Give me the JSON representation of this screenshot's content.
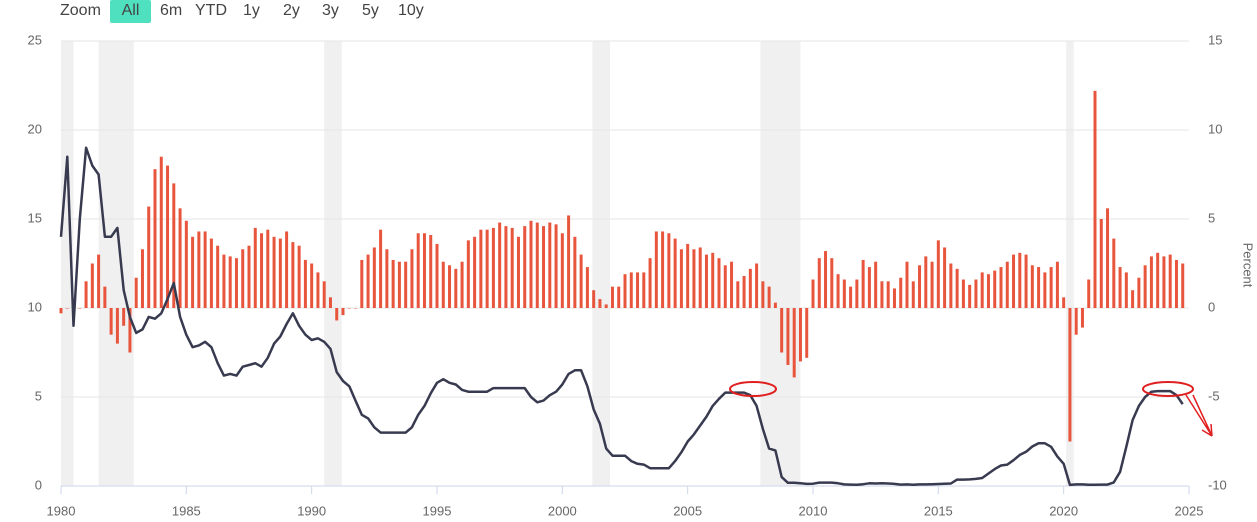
{
  "range_selector": {
    "label": "Zoom",
    "buttons": [
      "All",
      "6m",
      "YTD",
      "1y",
      "2y",
      "3y",
      "5y",
      "10y"
    ],
    "selected": 0
  },
  "chart_data": {
    "type": "combo",
    "y2label": "Percent",
    "xlim": [
      1980,
      2025
    ],
    "xticks": [
      1980,
      1985,
      1990,
      1995,
      2000,
      2005,
      2010,
      2015,
      2020,
      2025
    ],
    "ylim": [
      0,
      25
    ],
    "yticks": [
      0,
      5,
      10,
      15,
      20,
      25
    ],
    "y2lim": [
      -10,
      15
    ],
    "y2ticks": [
      -10,
      -5,
      0,
      5,
      10,
      15
    ],
    "grid": true,
    "recessions": [
      [
        1980.0,
        1980.5
      ],
      [
        1981.5,
        1982.9
      ],
      [
        1990.5,
        1991.2
      ],
      [
        2001.2,
        2001.9
      ],
      [
        2007.9,
        2009.5
      ],
      [
        2020.1,
        2020.4
      ]
    ],
    "x": [
      1980,
      1980.25,
      1980.5,
      1980.75,
      1981,
      1981.25,
      1981.5,
      1981.75,
      1982,
      1982.25,
      1982.5,
      1982.75,
      1983,
      1983.25,
      1983.5,
      1983.75,
      1984,
      1984.25,
      1984.5,
      1984.75,
      1985,
      1985.25,
      1985.5,
      1985.75,
      1986,
      1986.25,
      1986.5,
      1986.75,
      1987,
      1987.25,
      1987.5,
      1987.75,
      1988,
      1988.25,
      1988.5,
      1988.75,
      1989,
      1989.25,
      1989.5,
      1989.75,
      1990,
      1990.25,
      1990.5,
      1990.75,
      1991,
      1991.25,
      1991.5,
      1991.75,
      1992,
      1992.25,
      1992.5,
      1992.75,
      1993,
      1993.25,
      1993.5,
      1993.75,
      1994,
      1994.25,
      1994.5,
      1994.75,
      1995,
      1995.25,
      1995.5,
      1995.75,
      1996,
      1996.25,
      1996.5,
      1996.75,
      1997,
      1997.25,
      1997.5,
      1997.75,
      1998,
      1998.25,
      1998.5,
      1998.75,
      1999,
      1999.25,
      1999.5,
      1999.75,
      2000,
      2000.25,
      2000.5,
      2000.75,
      2001,
      2001.25,
      2001.5,
      2001.75,
      2002,
      2002.25,
      2002.5,
      2002.75,
      2003,
      2003.25,
      2003.5,
      2003.75,
      2004,
      2004.25,
      2004.5,
      2004.75,
      2005,
      2005.25,
      2005.5,
      2005.75,
      2006,
      2006.25,
      2006.5,
      2006.75,
      2007,
      2007.25,
      2007.5,
      2007.75,
      2008,
      2008.25,
      2008.5,
      2008.75,
      2009,
      2009.25,
      2009.5,
      2009.75,
      2010,
      2010.25,
      2010.5,
      2010.75,
      2011,
      2011.25,
      2011.5,
      2011.75,
      2012,
      2012.25,
      2012.5,
      2012.75,
      2013,
      2013.25,
      2013.5,
      2013.75,
      2014,
      2014.25,
      2014.5,
      2014.75,
      2015,
      2015.25,
      2015.5,
      2015.75,
      2016,
      2016.25,
      2016.5,
      2016.75,
      2017,
      2017.25,
      2017.5,
      2017.75,
      2018,
      2018.25,
      2018.5,
      2018.75,
      2019,
      2019.25,
      2019.5,
      2019.75,
      2020,
      2020.25,
      2020.5,
      2020.75,
      2021,
      2021.25,
      2021.5,
      2021.75,
      2022,
      2022.25,
      2022.5,
      2022.75,
      2023,
      2023.25,
      2023.5,
      2023.75,
      2024,
      2024.25,
      2024.5,
      2024.75
    ],
    "series": [
      {
        "type": "line",
        "color": "#383b50",
        "values": [
          14,
          18.5,
          9,
          15,
          19,
          18,
          17.5,
          14,
          14,
          14.5,
          11,
          9.5,
          8.6,
          8.8,
          9.5,
          9.4,
          9.7,
          10.5,
          11.4,
          9.5,
          8.5,
          7.8,
          7.9,
          8.1,
          7.8,
          6.9,
          6.2,
          6.3,
          6.2,
          6.7,
          6.8,
          6.9,
          6.7,
          7.2,
          8,
          8.4,
          9.1,
          9.7,
          9,
          8.5,
          8.2,
          8.3,
          8.1,
          7.7,
          6.4,
          5.9,
          5.6,
          4.8,
          4,
          3.8,
          3.3,
          3,
          3,
          3,
          3,
          3,
          3.3,
          4,
          4.5,
          5.2,
          5.8,
          6,
          5.8,
          5.7,
          5.4,
          5.3,
          5.3,
          5.3,
          5.3,
          5.5,
          5.5,
          5.5,
          5.5,
          5.5,
          5.5,
          5,
          4.7,
          4.8,
          5.1,
          5.3,
          5.7,
          6.3,
          6.5,
          6.5,
          5.6,
          4.3,
          3.5,
          2.1,
          1.7,
          1.7,
          1.7,
          1.4,
          1.25,
          1.2,
          1,
          1,
          1,
          1,
          1.4,
          1.9,
          2.5,
          2.9,
          3.4,
          3.9,
          4.5,
          4.9,
          5.25,
          5.25,
          5.25,
          5.25,
          5.1,
          4.5,
          3.2,
          2.1,
          2,
          0.5,
          0.18,
          0.18,
          0.15,
          0.12,
          0.13,
          0.19,
          0.19,
          0.19,
          0.15,
          0.09,
          0.08,
          0.07,
          0.1,
          0.15,
          0.14,
          0.16,
          0.14,
          0.12,
          0.08,
          0.09,
          0.07,
          0.09,
          0.09,
          0.1,
          0.11,
          0.13,
          0.14,
          0.36,
          0.36,
          0.37,
          0.4,
          0.45,
          0.7,
          0.95,
          1.15,
          1.2,
          1.45,
          1.75,
          1.92,
          2.22,
          2.4,
          2.4,
          2.2,
          1.65,
          1.25,
          0.06,
          0.09,
          0.09,
          0.07,
          0.07,
          0.08,
          0.08,
          0.2,
          0.8,
          2.2,
          3.7,
          4.5,
          5,
          5.3,
          5.33,
          5.33,
          5.33,
          5.1,
          4.6
        ]
      },
      {
        "type": "bar",
        "axis": "y2",
        "color": "#e8553d",
        "values": [
          -0.3,
          0,
          -0.5,
          0,
          1.5,
          2.5,
          3,
          1.2,
          -1.5,
          -2,
          -1,
          -2.5,
          1.7,
          3.3,
          5.7,
          7.8,
          8.5,
          8,
          7,
          5.6,
          4.9,
          4,
          4.3,
          4.3,
          3.9,
          3.5,
          3,
          2.9,
          2.8,
          3.3,
          3.5,
          4.5,
          4.2,
          4.4,
          4,
          3.9,
          4.3,
          3.7,
          3.5,
          2.7,
          2.5,
          2,
          1.5,
          0.6,
          -0.7,
          -0.4,
          0,
          0,
          2.7,
          3,
          3.4,
          4.4,
          3.3,
          2.7,
          2.6,
          2.6,
          3.3,
          4.2,
          4.2,
          4.1,
          3.6,
          2.6,
          2.4,
          2.2,
          2.6,
          3.8,
          4,
          4.4,
          4.4,
          4.5,
          4.8,
          4.6,
          4.5,
          4,
          4.6,
          4.9,
          4.8,
          4.6,
          4.8,
          4.7,
          4.2,
          5.2,
          4,
          3,
          2.3,
          1,
          0.5,
          0.2,
          1.2,
          1.2,
          1.9,
          2,
          2,
          2,
          2.8,
          4.3,
          4.3,
          4.2,
          3.9,
          3.3,
          3.6,
          3.3,
          3.4,
          3,
          3.1,
          2.8,
          2.4,
          2.6,
          1.5,
          1.8,
          2.2,
          2.5,
          1.5,
          1.2,
          0.3,
          -2.5,
          -3.2,
          -3.9,
          -3,
          -2.8,
          1.6,
          2.8,
          3.2,
          2.8,
          1.9,
          1.6,
          1.2,
          1.6,
          2.7,
          2.3,
          2.6,
          1.5,
          1.5,
          1.1,
          1.7,
          2.6,
          1.5,
          2.4,
          2.9,
          2.6,
          3.8,
          3.4,
          2.5,
          2.2,
          1.6,
          1.3,
          1.6,
          2,
          1.9,
          2.1,
          2.3,
          2.6,
          3,
          3.1,
          3,
          2.4,
          2.3,
          2,
          2.3,
          2.6,
          0.6,
          -7.5,
          -1.5,
          -1.1,
          1.6,
          12.2,
          5,
          5.6,
          3.9,
          2.3,
          2,
          1,
          1.7,
          2.4,
          2.9,
          3.1,
          2.9,
          3,
          2.7,
          2.5
        ]
      }
    ]
  }
}
